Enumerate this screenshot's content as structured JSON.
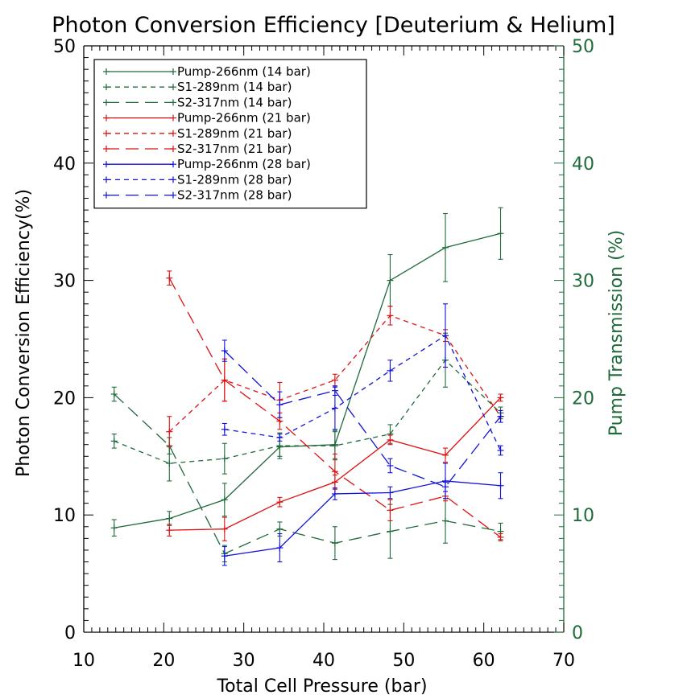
{
  "chart_data": {
    "type": "line",
    "title": "Photon Conversion Efficiency [Deuterium & Helium]",
    "xlabel": "Total Cell Pressure (bar)",
    "ylabel": "Photon Conversion Efficiency(%)",
    "y2label": "Pump Transmission (%)",
    "xlim": [
      10,
      70
    ],
    "ylim": [
      0,
      50
    ],
    "y2lim": [
      0,
      50
    ],
    "xticks": [
      10,
      20,
      30,
      40,
      50,
      60,
      70
    ],
    "yticks": [
      0,
      10,
      20,
      30,
      40,
      50
    ],
    "y2ticks": [
      0,
      10,
      20,
      30,
      40,
      50
    ],
    "grid": false,
    "legend_position": "top-left",
    "colors": {
      "green": "#1f6b3a",
      "red": "#dd1111",
      "blue": "#1111dd",
      "axis_right": "#1f6b3a"
    },
    "series": [
      {
        "name": "Pump-266nm (14 bar)",
        "color": "green",
        "dash": "solid",
        "x": [
          13.8,
          20.7,
          27.6,
          34.5,
          41.4,
          48.3,
          55.2,
          62.1
        ],
        "y": [
          8.9,
          9.7,
          11.3,
          15.8,
          16.0,
          30.0,
          32.8,
          34.0
        ],
        "err": [
          0.7,
          0.6,
          1.4,
          0.8,
          1.2,
          2.2,
          2.9,
          2.2
        ]
      },
      {
        "name": "S1-289nm (14 bar)",
        "color": "green",
        "dash": "short",
        "x": [
          13.8,
          20.7,
          27.6,
          34.5,
          41.4,
          48.3,
          55.2,
          62.1
        ],
        "y": [
          16.3,
          14.4,
          14.8,
          15.9,
          15.9,
          16.9,
          23.2,
          18.7
        ],
        "err": [
          0.6,
          1.5,
          1.3,
          1.1,
          1.2,
          0.8,
          2.3,
          0.5
        ]
      },
      {
        "name": "S2-317nm (14 bar)",
        "color": "green",
        "dash": "long",
        "x": [
          13.8,
          20.7,
          27.6,
          34.5,
          41.4,
          48.3,
          55.2,
          62.1
        ],
        "y": [
          20.3,
          15.9,
          6.7,
          8.8,
          7.6,
          8.6,
          9.5,
          8.6
        ],
        "err": [
          0.6,
          0.7,
          0.7,
          0.6,
          1.4,
          2.3,
          1.9,
          0.7
        ]
      },
      {
        "name": "Pump-266nm (21 bar)",
        "color": "red",
        "dash": "solid",
        "x": [
          20.7,
          27.6,
          34.5,
          41.4,
          48.3,
          55.2,
          62.1
        ],
        "y": [
          8.7,
          8.8,
          11.1,
          12.8,
          16.4,
          15.1,
          20.0
        ],
        "err": [
          0.5,
          1.0,
          0.4,
          0.6,
          0.4,
          0.6,
          0.3
        ]
      },
      {
        "name": "S1-289nm (21 bar)",
        "color": "red",
        "dash": "short",
        "x": [
          20.7,
          27.6,
          34.5,
          41.4,
          48.3,
          55.2,
          62.1
        ],
        "y": [
          17.1,
          21.5,
          19.8,
          21.5,
          27.0,
          25.3,
          18.4
        ],
        "err": [
          1.3,
          1.8,
          1.5,
          0.5,
          0.8,
          0.5,
          0.5
        ]
      },
      {
        "name": "S2-317nm (21 bar)",
        "color": "red",
        "dash": "long",
        "x": [
          20.7,
          27.6,
          34.5,
          41.4,
          48.3,
          55.2,
          62.1
        ],
        "y": [
          30.2,
          21.5,
          18.0,
          13.7,
          10.4,
          11.6,
          8.1
        ],
        "err": [
          0.6,
          1.8,
          0.7,
          1.5,
          0.9,
          0.4,
          0.3
        ]
      },
      {
        "name": "Pump-266nm (28 bar)",
        "color": "blue",
        "dash": "solid",
        "x": [
          27.6,
          34.5,
          41.4,
          48.3,
          55.2,
          62.1
        ],
        "y": [
          6.5,
          7.2,
          11.8,
          11.9,
          12.9,
          12.5
        ],
        "err": [
          0.8,
          1.2,
          0.5,
          0.5,
          1.5,
          1.1
        ]
      },
      {
        "name": "S1-289nm (28 bar)",
        "color": "blue",
        "dash": "short",
        "x": [
          27.6,
          34.5,
          41.4,
          48.3,
          55.2,
          62.1
        ],
        "y": [
          17.3,
          16.6,
          19.1,
          22.3,
          25.3,
          15.5
        ],
        "err": [
          0.5,
          0.3,
          1.8,
          0.9,
          2.7,
          0.4
        ]
      },
      {
        "name": "S2-317nm (28 bar)",
        "color": "blue",
        "dash": "long",
        "x": [
          27.6,
          34.5,
          41.4,
          48.3,
          55.2,
          62.1
        ],
        "y": [
          24.0,
          19.4,
          20.6,
          14.2,
          12.4,
          18.4
        ],
        "err": [
          0.9,
          1.1,
          0.4,
          0.6,
          0.4,
          0.5
        ]
      }
    ]
  }
}
